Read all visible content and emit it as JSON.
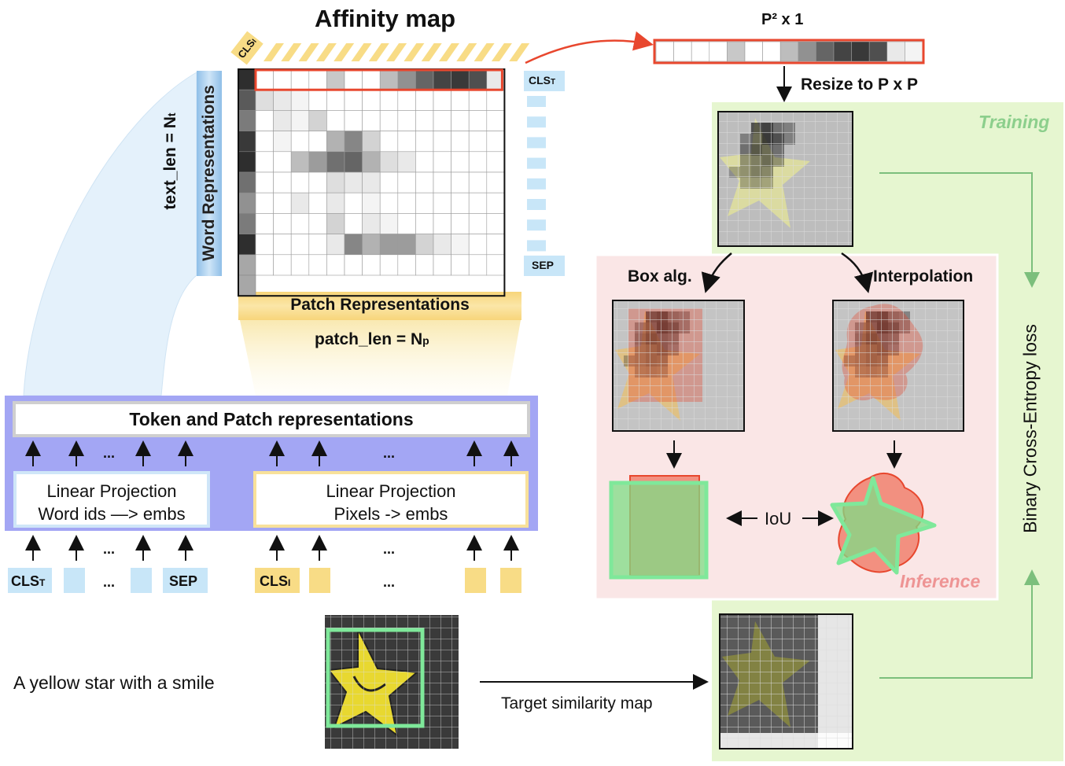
{
  "title": "Affinity map",
  "vector_label": "P² x 1",
  "resize_label": "Resize to P x P",
  "training_label": "Training",
  "inference_label": "Inference",
  "box_alg_label": "Box alg.",
  "interpolation_label": "Interpolation",
  "iou_label": "IoU",
  "bce_label": "Binary Cross-Entropy loss",
  "word_repr_label": "Word Representations",
  "text_len_label": "text_len = N",
  "text_len_sub": "t",
  "patch_repr_label": "Patch Representations",
  "patch_len_label": "patch_len = N",
  "patch_len_sub": "p",
  "cls_t_label": "CLS",
  "cls_t_sub": "T",
  "cls_i_label": "CLS",
  "cls_i_sub": "I",
  "sep_label": "SEP",
  "token_patch_label": "Token and Patch representations",
  "linear_proj_word_1": "Linear Projection",
  "linear_proj_word_2": "Word  ids  —> embs",
  "linear_proj_pix_1": "Linear Projection",
  "linear_proj_pix_2": "Pixels -> embs",
  "ellipsis": "...",
  "caption": "A yellow star with a smile",
  "target_label": "Target similarity map",
  "affinity_first_row": [
    0,
    0,
    0,
    0,
    0.25,
    0,
    0,
    0.3,
    0.5,
    0.7,
    0.85,
    0.9,
    0.8,
    0.1
  ],
  "affinity_rows": [
    [
      0.15,
      0.1,
      0.05,
      0,
      0,
      0,
      0,
      0,
      0,
      0,
      0,
      0,
      0,
      0
    ],
    [
      0,
      0.1,
      0.05,
      0.2,
      0,
      0,
      0,
      0,
      0,
      0,
      0,
      0,
      0,
      0
    ],
    [
      0,
      0.05,
      0,
      0,
      0.35,
      0.55,
      0.2,
      0,
      0,
      0,
      0,
      0,
      0,
      0
    ],
    [
      0,
      0,
      0.3,
      0.45,
      0.65,
      0.7,
      0.35,
      0.15,
      0.1,
      0,
      0,
      0,
      0,
      0
    ],
    [
      0,
      0,
      0,
      0,
      0.15,
      0.1,
      0.1,
      0,
      0,
      0,
      0,
      0,
      0,
      0
    ],
    [
      0,
      0,
      0.1,
      0,
      0.1,
      0,
      0.05,
      0,
      0,
      0,
      0,
      0,
      0,
      0
    ],
    [
      0,
      0,
      0,
      0,
      0.2,
      0,
      0.1,
      0.05,
      0,
      0,
      0,
      0,
      0,
      0
    ],
    [
      0,
      0,
      0,
      0,
      0.1,
      0.55,
      0.35,
      0.45,
      0.45,
      0.2,
      0.1,
      0.05,
      0,
      0
    ],
    [
      0,
      0,
      0,
      0,
      0,
      0,
      0,
      0,
      0,
      0,
      0,
      0,
      0,
      0
    ]
  ],
  "affinity_word_col": [
    0.95,
    0.75,
    0.6,
    0.9,
    0.95,
    0.65,
    0.5,
    0.6,
    0.95,
    0.4
  ],
  "colors": {
    "accent_red": "#e8472e",
    "green_light": "#e6f6d0",
    "green_text": "#7cbf7c",
    "pink_panel": "#fae6e6",
    "pink_text": "#e98a8a",
    "blue_band": "#a3a6f4",
    "blue_token": "#c8e6f8",
    "yellow_token": "#f8dc86",
    "gray_border": "#d6d6d6"
  }
}
